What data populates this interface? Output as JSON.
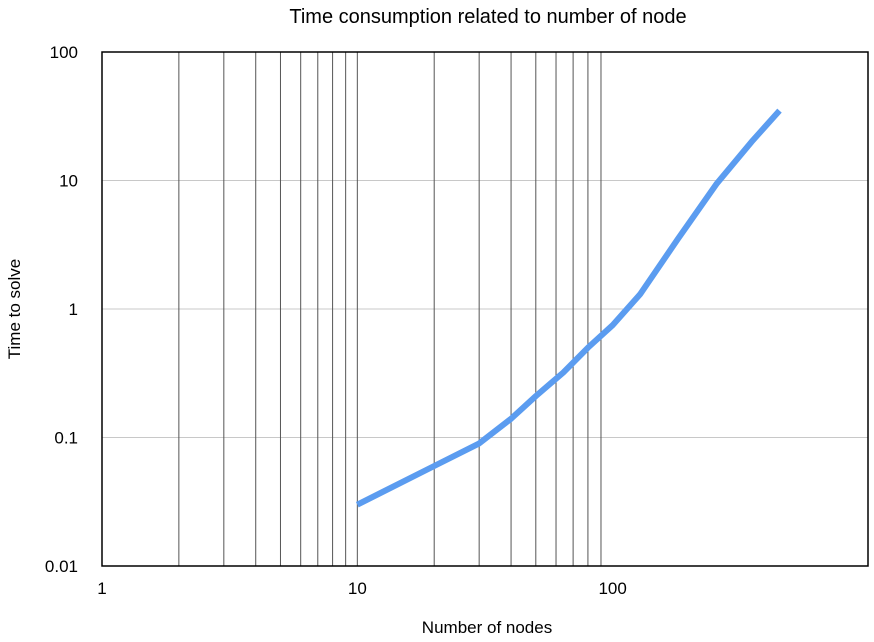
{
  "chart_data": {
    "type": "line",
    "title": "Time consumption related to number of node",
    "xlabel": "Number of nodes",
    "ylabel": "Time to solve",
    "x_scale": "log",
    "y_scale": "log",
    "xlim": [
      1,
      1000
    ],
    "ylim": [
      0.01,
      100
    ],
    "x_ticks": [
      1,
      10,
      100
    ],
    "x_tick_labels": [
      "1",
      "10",
      "100"
    ],
    "y_ticks": [
      0.01,
      0.1,
      1,
      10,
      100
    ],
    "y_tick_labels": [
      "0.01",
      "0.1",
      "1",
      "10",
      "100"
    ],
    "grid": {
      "x_minor": true,
      "y_major": true
    },
    "legend": "none",
    "series": [
      {
        "color": "#5b9cf0",
        "x": [
          10,
          20,
          30,
          40,
          50,
          64,
          80,
          100,
          128,
          180,
          256,
          350,
          450
        ],
        "y": [
          0.03,
          0.06,
          0.09,
          0.14,
          0.21,
          0.32,
          0.5,
          0.75,
          1.3,
          3.5,
          9.5,
          20,
          35
        ]
      }
    ]
  }
}
